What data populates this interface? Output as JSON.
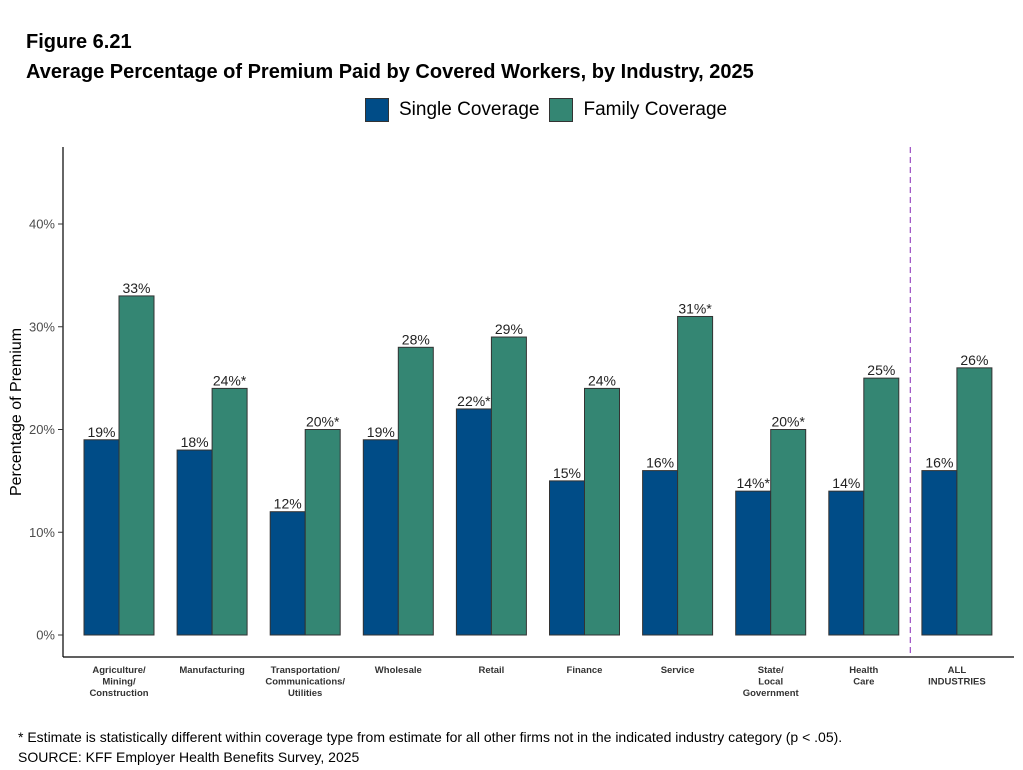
{
  "figure_number": "Figure 6.21",
  "title": "Average Percentage of Premium Paid by Covered Workers, by Industry, 2025",
  "legend": [
    {
      "label": "Single Coverage",
      "color": "#004c87"
    },
    {
      "label": "Family Coverage",
      "color": "#348673"
    }
  ],
  "footnotes": {
    "note": "* Estimate is statistically different within coverage type from estimate for all other firms not in the indicated industry category (p < .05).",
    "source": "SOURCE: KFF Employer Health Benefits Survey, 2025"
  },
  "chart_data": {
    "type": "bar",
    "ylabel": "Percentage of Premium",
    "ylim": [
      0,
      45
    ],
    "yticks": [
      "0%",
      "10%",
      "20%",
      "30%",
      "40%"
    ],
    "ytick_values": [
      0,
      10,
      20,
      30,
      40
    ],
    "grid": false,
    "legend_position": "top",
    "categories": [
      [
        "Agriculture/",
        "Mining/",
        "Construction"
      ],
      [
        "Manufacturing"
      ],
      [
        "Transportation/",
        "Communications/",
        "Utilities"
      ],
      [
        "Wholesale"
      ],
      [
        "Retail"
      ],
      [
        "Finance"
      ],
      [
        "Service"
      ],
      [
        "State/",
        "Local",
        "Government"
      ],
      [
        "Health",
        "Care"
      ],
      [
        "ALL",
        "INDUSTRIES"
      ]
    ],
    "separator_before_category": 9,
    "series": [
      {
        "name": "Single Coverage",
        "color": "#004c87",
        "values": [
          19,
          18,
          12,
          19,
          22,
          15,
          16,
          14,
          14,
          16
        ],
        "labels": [
          "19%",
          "18%",
          "12%",
          "19%",
          "22%*",
          "15%",
          "16%",
          "14%*",
          "14%",
          "16%"
        ]
      },
      {
        "name": "Family Coverage",
        "color": "#348673",
        "values": [
          33,
          24,
          20,
          28,
          29,
          24,
          31,
          20,
          25,
          26
        ],
        "labels": [
          "33%",
          "24%*",
          "20%*",
          "28%",
          "29%",
          "24%",
          "31%*",
          "20%*",
          "25%",
          "26%"
        ]
      }
    ]
  }
}
